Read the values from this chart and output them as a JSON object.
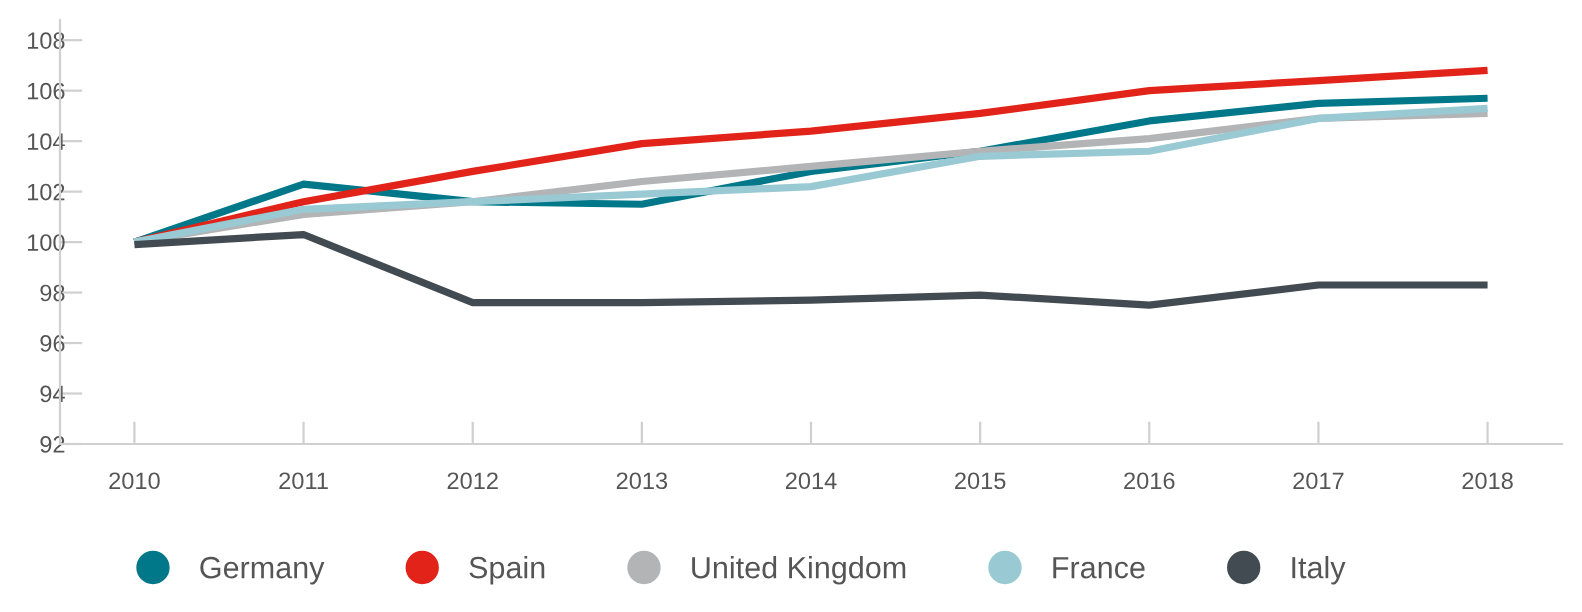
{
  "chart_data": {
    "type": "line",
    "categories": [
      "2010",
      "2011",
      "2012",
      "2013",
      "2014",
      "2015",
      "2016",
      "2017",
      "2018"
    ],
    "series": [
      {
        "name": "Germany",
        "color": "#00788a",
        "values": [
          100,
          102.3,
          101.6,
          101.5,
          102.8,
          103.6,
          104.8,
          105.5,
          105.7
        ]
      },
      {
        "name": "Spain",
        "color": "#e2231a",
        "values": [
          100,
          101.6,
          102.8,
          103.9,
          104.4,
          105.1,
          106.0,
          106.4,
          106.8
        ]
      },
      {
        "name": "United Kingdom",
        "color": "#b3b4b6",
        "values": [
          100,
          101.1,
          101.6,
          102.4,
          103.0,
          103.6,
          104.1,
          104.9,
          105.1
        ]
      },
      {
        "name": "France",
        "color": "#99cad3",
        "values": [
          100,
          101.3,
          101.6,
          101.9,
          102.2,
          103.4,
          103.6,
          104.9,
          105.3
        ]
      },
      {
        "name": "Italy",
        "color": "#434b52",
        "values": [
          99.9,
          100.3,
          97.6,
          97.6,
          97.7,
          97.9,
          97.5,
          98.3,
          98.3
        ]
      }
    ],
    "ylim": [
      92,
      108.8
    ],
    "yticks": [
      92,
      94,
      96,
      98,
      100,
      102,
      104,
      106,
      108
    ],
    "grid": false,
    "legend": "bottom",
    "marker": "none",
    "line_style": "solid"
  }
}
